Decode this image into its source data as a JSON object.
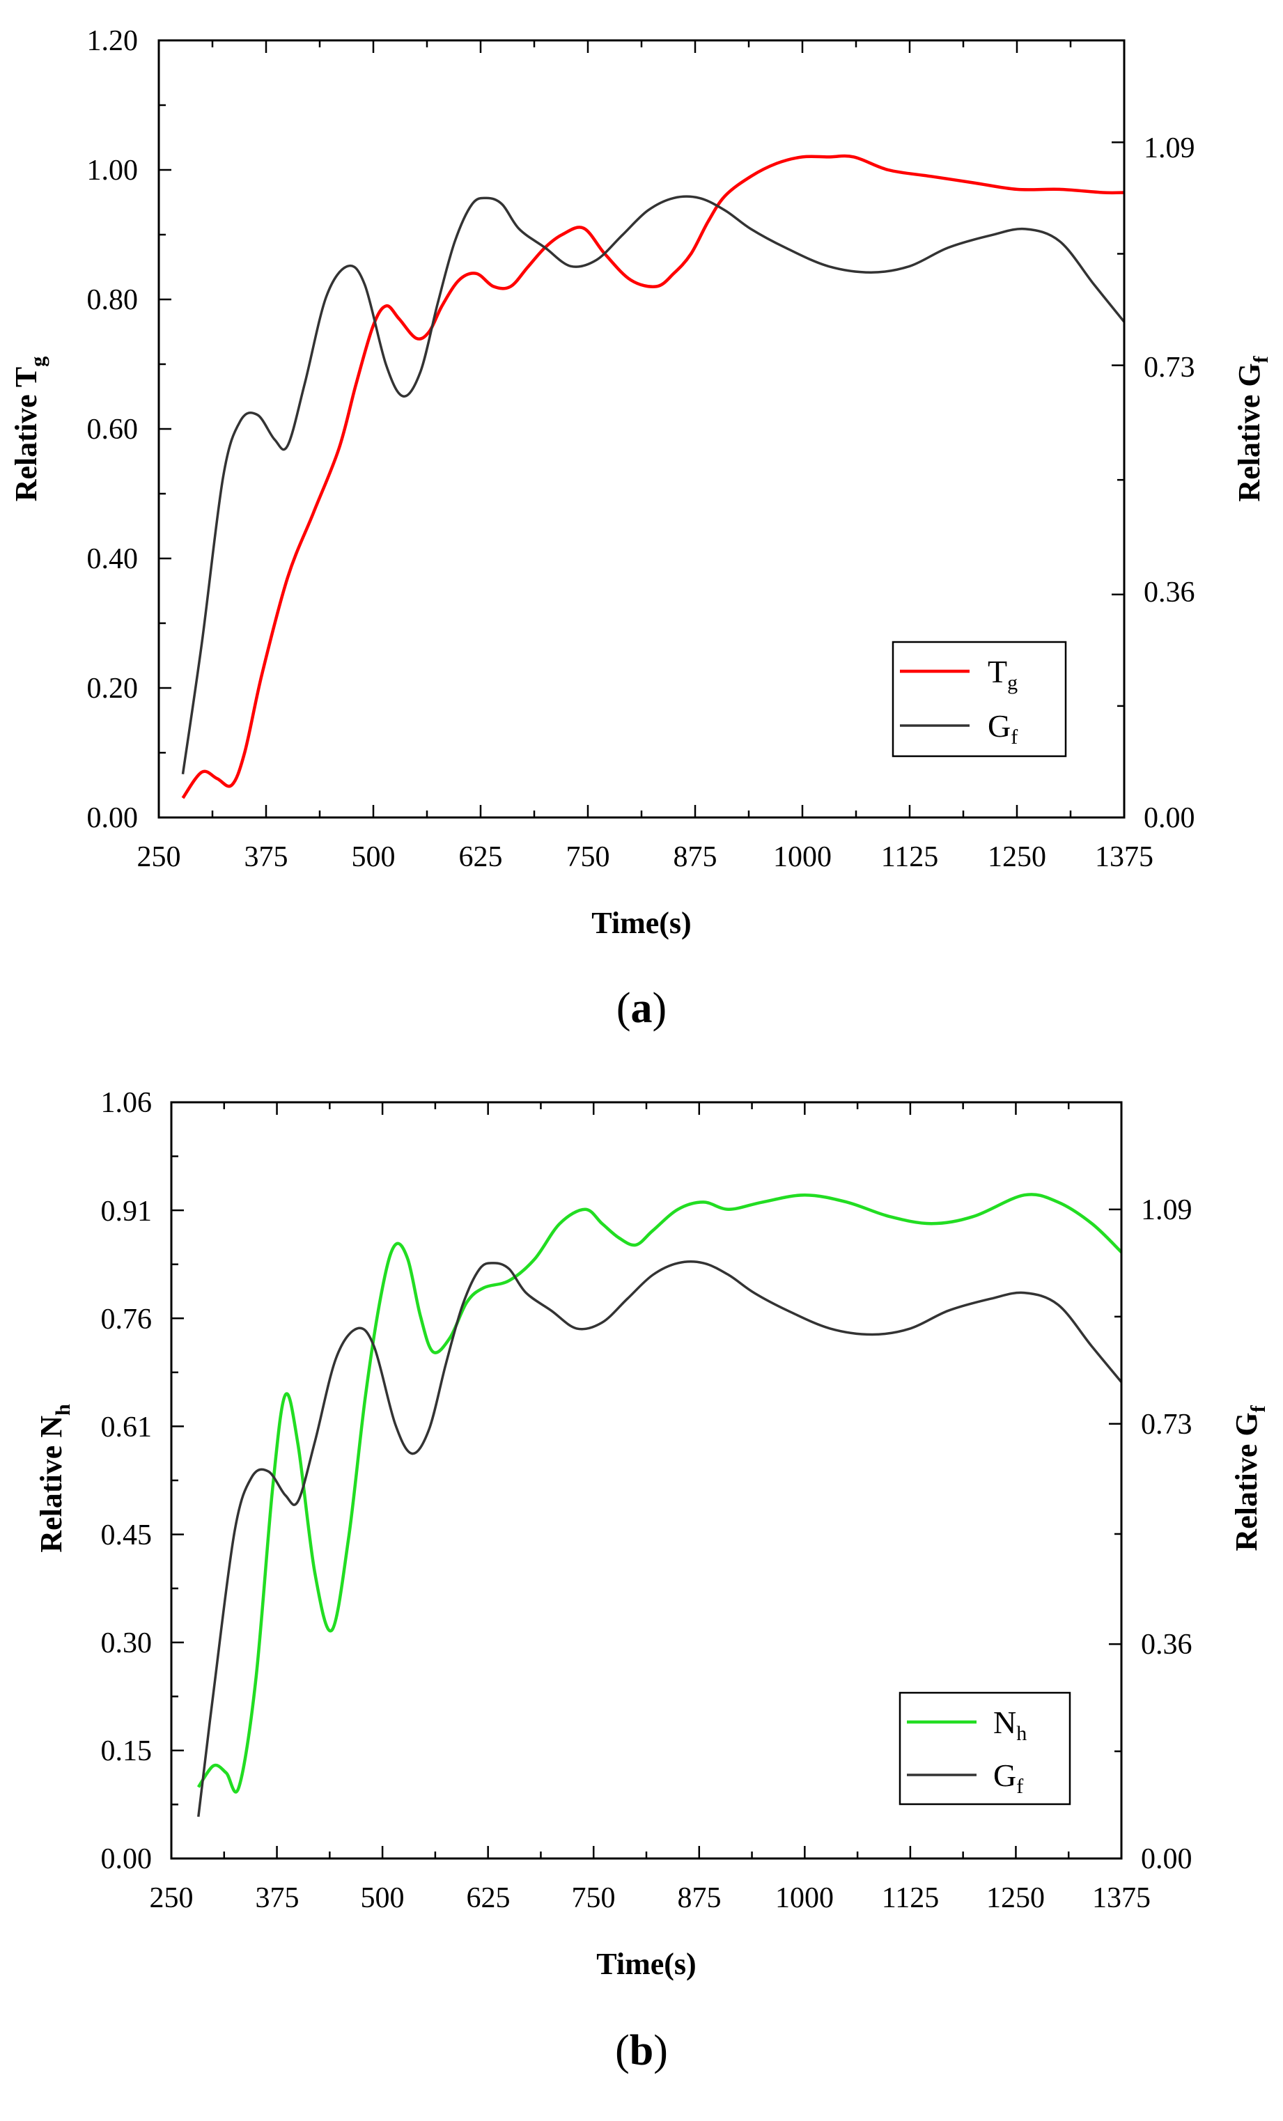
{
  "chart_data": [
    {
      "type": "line",
      "panel_label": "a",
      "xlabel": "Time(s)",
      "ylabel": {
        "main": "Relative T",
        "sub": "g"
      },
      "y2label": {
        "main": "Relative G",
        "sub": "f"
      },
      "xlim": [
        250,
        1375
      ],
      "ylim": [
        0,
        1.2
      ],
      "y2lim": [
        0,
        1.2545
      ],
      "xticks": [
        "250",
        "375",
        "500",
        "625",
        "750",
        "875",
        "1000",
        "1125",
        "1250",
        "1375"
      ],
      "yticks": [
        "0.00",
        "0.20",
        "0.40",
        "0.60",
        "0.80",
        "1.00",
        "1.20"
      ],
      "y2ticks": [
        "0.00",
        "0.36",
        "0.73",
        "1.09"
      ],
      "legend_position": "bottom-right",
      "series": [
        {
          "name": "T",
          "name_sub": "g",
          "axis": "left",
          "color": "#ff0000",
          "x": [
            278,
            300,
            318,
            335,
            350,
            370,
            400,
            430,
            460,
            480,
            500,
            515,
            530,
            550,
            565,
            580,
            600,
            620,
            640,
            660,
            680,
            700,
            720,
            745,
            770,
            800,
            830,
            850,
            870,
            890,
            910,
            940,
            970,
            1000,
            1030,
            1060,
            1100,
            1150,
            1200,
            1250,
            1300,
            1350,
            1375
          ],
          "y": [
            0.03,
            0.07,
            0.06,
            0.05,
            0.1,
            0.22,
            0.37,
            0.47,
            0.57,
            0.67,
            0.76,
            0.79,
            0.77,
            0.74,
            0.75,
            0.79,
            0.83,
            0.84,
            0.82,
            0.82,
            0.85,
            0.88,
            0.9,
            0.91,
            0.87,
            0.83,
            0.82,
            0.84,
            0.87,
            0.92,
            0.96,
            0.99,
            1.01,
            1.02,
            1.02,
            1.02,
            1.0,
            0.99,
            0.98,
            0.97,
            0.97,
            0.965,
            0.965
          ]
        },
        {
          "name": "G",
          "name_sub": "f",
          "axis": "right",
          "color": "#333333",
          "x": [
            278,
            300,
            325,
            345,
            365,
            385,
            400,
            420,
            445,
            470,
            490,
            515,
            535,
            555,
            575,
            595,
            615,
            632,
            650,
            670,
            700,
            730,
            760,
            790,
            820,
            850,
            880,
            910,
            940,
            980,
            1030,
            1080,
            1125,
            1170,
            1220,
            1260,
            1300,
            1340,
            1375
          ],
          "y": [
            0.07,
            0.28,
            0.55,
            0.64,
            0.65,
            0.61,
            0.6,
            0.7,
            0.84,
            0.89,
            0.86,
            0.73,
            0.68,
            0.72,
            0.83,
            0.93,
            0.99,
            1.0,
            0.99,
            0.95,
            0.92,
            0.89,
            0.9,
            0.94,
            0.98,
            1.0,
            1.0,
            0.98,
            0.95,
            0.92,
            0.89,
            0.88,
            0.89,
            0.92,
            0.94,
            0.95,
            0.93,
            0.86,
            0.8
          ]
        }
      ]
    },
    {
      "type": "line",
      "panel_label": "b",
      "xlabel": "Time(s)",
      "ylabel": {
        "main": "Relative N",
        "sub": "h"
      },
      "y2label": {
        "main": "Relative G",
        "sub": "f"
      },
      "xlim": [
        250,
        1375
      ],
      "ylim": [
        0,
        1.06
      ],
      "y2lim": [
        0,
        1.27
      ],
      "xticks": [
        "250",
        "375",
        "500",
        "625",
        "750",
        "875",
        "1000",
        "1125",
        "1250",
        "1375"
      ],
      "yticks": [
        "0.00",
        "0.15",
        "0.30",
        "0.45",
        "0.61",
        "0.76",
        "0.91",
        "1.06"
      ],
      "y2ticks": [
        "0.00",
        "0.36",
        "0.73",
        "1.09"
      ],
      "legend_position": "bottom-right",
      "series": [
        {
          "name": "N",
          "name_sub": "h",
          "axis": "left",
          "color": "#22dd22",
          "x": [
            282,
            300,
            315,
            330,
            350,
            370,
            385,
            400,
            420,
            440,
            460,
            480,
            500,
            515,
            530,
            545,
            560,
            580,
            600,
            620,
            650,
            680,
            710,
            740,
            760,
            780,
            800,
            820,
            850,
            880,
            910,
            950,
            1000,
            1050,
            1100,
            1150,
            1200,
            1260,
            1300,
            1340,
            1375
          ],
          "y": [
            0.1,
            0.13,
            0.12,
            0.1,
            0.25,
            0.52,
            0.65,
            0.58,
            0.4,
            0.32,
            0.45,
            0.65,
            0.8,
            0.86,
            0.84,
            0.76,
            0.71,
            0.73,
            0.78,
            0.8,
            0.81,
            0.84,
            0.89,
            0.91,
            0.89,
            0.87,
            0.86,
            0.88,
            0.91,
            0.92,
            0.91,
            0.92,
            0.93,
            0.92,
            0.9,
            0.89,
            0.9,
            0.93,
            0.92,
            0.89,
            0.85
          ]
        },
        {
          "name": "G",
          "name_sub": "f",
          "axis": "right",
          "color": "#333333",
          "x": [
            282,
            300,
            325,
            345,
            365,
            385,
            400,
            420,
            445,
            470,
            490,
            515,
            535,
            555,
            575,
            595,
            615,
            632,
            650,
            670,
            700,
            730,
            760,
            790,
            820,
            850,
            880,
            910,
            940,
            980,
            1030,
            1080,
            1125,
            1170,
            1220,
            1260,
            1300,
            1340,
            1375
          ],
          "y": [
            0.07,
            0.28,
            0.55,
            0.64,
            0.65,
            0.61,
            0.6,
            0.7,
            0.84,
            0.89,
            0.86,
            0.73,
            0.68,
            0.72,
            0.83,
            0.93,
            0.99,
            1.0,
            0.99,
            0.95,
            0.92,
            0.89,
            0.9,
            0.94,
            0.98,
            1.0,
            1.0,
            0.98,
            0.95,
            0.92,
            0.89,
            0.88,
            0.89,
            0.92,
            0.94,
            0.95,
            0.93,
            0.86,
            0.8
          ]
        }
      ]
    }
  ]
}
